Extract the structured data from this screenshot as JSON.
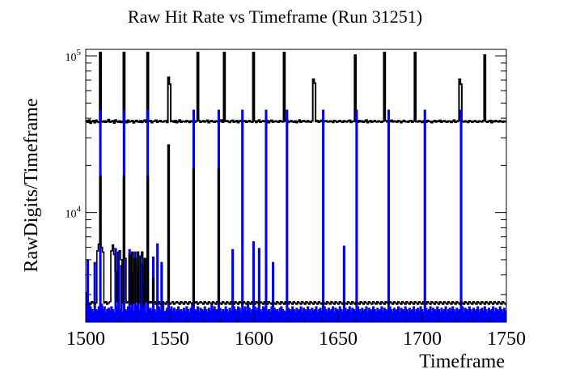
{
  "chart_data": {
    "type": "line",
    "title": "Raw Hit Rate vs Timeframe (Run 31251)",
    "xlabel": "Timeframe",
    "ylabel": "RawDigits/Timeframe",
    "xlim": [
      1500,
      1750
    ],
    "ylim": [
      2000,
      110000
    ],
    "yscale": "log",
    "xticks": [
      1500,
      1550,
      1600,
      1650,
      1700,
      1750
    ],
    "yticks": [
      {
        "value": 10000,
        "base": "10",
        "exp": "4"
      },
      {
        "value": 100000,
        "base": "10",
        "exp": "5"
      }
    ],
    "grid": false,
    "series": [
      {
        "color": "#000000",
        "style": "outline-step",
        "values": [
          38500,
          37800,
          39000,
          37200,
          38100,
          38600,
          37500,
          38800,
          38000,
          37600,
          105000,
          38200,
          37900,
          38400,
          37700,
          38300,
          39200,
          37800,
          38100,
          38500,
          37300,
          38900,
          38200,
          37800,
          38400,
          37600,
          38100,
          105000,
          38300,
          37500,
          38800,
          37900,
          38200,
          38600,
          37400,
          38100,
          38700,
          38000,
          37800,
          38500,
          37600,
          38300,
          38900,
          37700,
          105000,
          38200,
          38600,
          37500,
          38100,
          38400,
          38800,
          37700,
          38200,
          38600,
          38000,
          37900,
          38300,
          38500,
          37600,
          73000,
          66000,
          38100,
          38400,
          37800,
          38600,
          37500,
          38200,
          38900,
          37700,
          38300,
          38100,
          37900,
          38600,
          38200,
          37600,
          38400,
          38000,
          38700,
          37800,
          38300,
          105000,
          38600,
          37700,
          38100,
          38500,
          37900,
          38300,
          38800,
          37500,
          38200,
          38600,
          38000,
          37800,
          38400,
          38100,
          37600,
          38300,
          38900,
          37700,
          105000,
          38200,
          38500,
          38000,
          37600,
          38400,
          38800,
          37800,
          38100,
          38600,
          37500,
          38300,
          38700,
          37900,
          38200,
          38500,
          37700,
          38100,
          38600,
          38000,
          37800,
          105000,
          38400,
          37600,
          38300,
          38900,
          37700,
          38200,
          38500,
          38100,
          37900,
          38600,
          37500,
          38300,
          38800,
          37800,
          38100,
          38400,
          38000,
          37700,
          38600,
          38200,
          37900,
          105000,
          38300,
          38700,
          37600,
          38100,
          38500,
          38000,
          37800,
          38400,
          37500,
          38200,
          38900,
          37700,
          38300,
          38600,
          38100,
          37900,
          38500,
          38000,
          37800,
          38400,
          71000,
          67000,
          38100,
          38600,
          37700,
          38300,
          38800,
          37500,
          38200,
          38500,
          38000,
          37900,
          38400,
          38100,
          37600,
          38700,
          38300,
          37800,
          38200,
          38600,
          38000,
          37700,
          38500,
          38100,
          37900,
          38400,
          38800,
          37600,
          38300,
          38100,
          101000,
          38200,
          37800,
          38600,
          38000,
          38400,
          37700,
          38300,
          38900,
          37500,
          38100,
          38500,
          37800,
          38200,
          38600,
          38000,
          37900,
          38400,
          38100,
          37700,
          38300,
          105000,
          38500,
          38000,
          37600,
          38200,
          38800,
          37900,
          38400,
          38100,
          37800,
          38600,
          38300,
          37500,
          38200,
          38700,
          38000,
          38100,
          37800,
          38400,
          38600,
          37700,
          38300,
          105000,
          38000,
          37900,
          38500,
          38200,
          37600,
          38400,
          38100,
          37800,
          38700,
          38300,
          38000,
          37500,
          38200,
          38600,
          37900,
          38400,
          38100,
          38800,
          37700,
          38300,
          38500,
          38000,
          37800,
          38400,
          38200,
          37600,
          38300,
          38900,
          37700,
          38100,
          38500,
          71000,
          66000,
          38200,
          37900,
          38400,
          38000,
          37600,
          38600,
          38300,
          37800,
          38100,
          38500,
          38000,
          37700,
          38400,
          38200,
          37900,
          38600,
          101000,
          38100,
          37800,
          38300,
          38700,
          37500,
          38400,
          38000,
          38600,
          38200,
          37900,
          38500,
          38100,
          37800,
          38300,
          38000
        ]
      },
      {
        "color": "#0000ff",
        "style": "filled-step",
        "values": [
          3100,
          5000,
          2600,
          2500,
          2400,
          2300,
          4800,
          2400,
          2350,
          2500,
          45000,
          2600,
          2400,
          2500,
          2300,
          2400,
          2450,
          2350,
          2500,
          2400,
          2300,
          5900,
          2500,
          5500,
          2400,
          4600,
          2300,
          45000,
          2400,
          2350,
          2500,
          5800,
          2450,
          4100,
          2350,
          5600,
          2550,
          4200,
          2400,
          5300,
          4700,
          2600,
          5000,
          2300,
          45000,
          2400,
          2450,
          2350,
          5200,
          2400,
          2300,
          6300,
          2500,
          2400,
          4800,
          2600,
          2300,
          2350,
          2450,
          27000,
          2400,
          2500,
          2350,
          2450,
          2300,
          2400,
          2500,
          2350,
          2400,
          2300,
          2450,
          2350,
          2500,
          2400,
          2300,
          2450,
          2550,
          45000,
          2400,
          2350,
          2500,
          2300,
          2450,
          2400,
          2350,
          2500,
          2400,
          2300,
          2450,
          2350,
          2600,
          2400,
          2500,
          2350,
          2400,
          45000,
          2450,
          2300,
          2400,
          2350,
          2500,
          2400,
          2300,
          2450,
          2350,
          5800,
          2500,
          2400,
          2350,
          2500,
          2450,
          2300,
          45000,
          2400,
          2500,
          2350,
          2600,
          2450,
          2300,
          2400,
          6500,
          2500,
          2350,
          2450,
          5900,
          2400,
          2300,
          2500,
          2450,
          45000,
          2350,
          2400,
          2300,
          2500,
          4800,
          2450,
          2350,
          2400,
          2300,
          2450,
          2500,
          2400,
          2350,
          2300,
          45000,
          2450,
          2400,
          2350,
          2500,
          2400,
          2300,
          2450,
          2350,
          2400,
          2500,
          2300,
          2450,
          2400,
          2350,
          2500,
          2400,
          2300,
          2450,
          2350,
          2400,
          2500,
          2300,
          2400,
          2450,
          2350,
          45000,
          2500,
          2400,
          2300,
          2450,
          2350,
          2400,
          2500,
          2300,
          2450,
          2400,
          2350,
          2500,
          2400,
          2300,
          6100,
          2450,
          2350,
          2400,
          2500,
          2300,
          2450,
          2400,
          2350,
          45000,
          2500,
          2400,
          2300,
          2450,
          2350,
          2400,
          2500,
          2300,
          2450,
          2400,
          2350,
          2500,
          2400,
          2300,
          2450,
          2350,
          2400,
          2500,
          2300,
          2450,
          2400,
          2350,
          45000,
          2500,
          2400,
          2300,
          2450,
          2350,
          2400,
          2500,
          2300,
          2450,
          2400,
          2350,
          2500,
          2400,
          2300,
          2450,
          2350,
          2400,
          2500,
          2300,
          2400,
          2450,
          2350,
          2500,
          2400,
          2300,
          45000,
          2450,
          2350,
          2400,
          2500,
          2300,
          2450,
          2400,
          2350,
          2500,
          2400,
          2300,
          2450,
          2350,
          2400,
          2500,
          2300,
          2400,
          2450,
          2350,
          2500,
          2400,
          2300,
          2450,
          2350,
          2400,
          45000,
          2500,
          2300,
          2450,
          2400,
          2350,
          2500,
          2400,
          2300,
          2450,
          2350,
          2400,
          2500,
          2300,
          2400,
          2450,
          2350,
          2500,
          2400,
          2300,
          2450,
          2350,
          2400,
          2500,
          2300,
          2450,
          2400,
          2350,
          2500,
          2400,
          2300,
          2450,
          2350
        ]
      },
      {
        "color": "#000000",
        "style": "outline-step-low",
        "values": [
          2600,
          2600,
          2650,
          2600,
          2700,
          2650,
          2600,
          2650,
          5700,
          6300,
          17000,
          6000,
          5600,
          2650,
          2700,
          2600,
          2650,
          2700,
          5700,
          6200,
          5400,
          4200,
          2700,
          5600,
          5700,
          5000,
          2650,
          17000,
          5100,
          2650,
          2700,
          5400,
          2600,
          5600,
          2650,
          5100,
          2700,
          5600,
          2650,
          5200,
          5600,
          2600,
          5100,
          2700,
          17000,
          2650,
          2700,
          2650,
          3800,
          2700,
          2600,
          2650,
          2700,
          2600,
          2650,
          2700,
          2650,
          2600,
          2700,
          27000,
          2600,
          2650,
          2700,
          2600,
          2650,
          2700,
          2650,
          2600,
          2700,
          2650,
          2600,
          2700,
          2650,
          2600,
          2700,
          2650,
          2600,
          19000,
          2650,
          2700,
          2600,
          2650,
          2700,
          2650,
          2600,
          2700,
          2650,
          2600,
          2700,
          2650,
          2600,
          2700,
          2650,
          2600,
          2700,
          19000,
          2650,
          2600,
          2700,
          2650,
          2600,
          2700,
          2650,
          2600,
          2700,
          2650,
          2600,
          2700,
          2650,
          2600,
          2700,
          2650,
          2600,
          2700,
          2650,
          2600,
          2700,
          2650,
          2600,
          2700,
          2650,
          2600,
          2700,
          2650,
          2600,
          2700,
          2650,
          2600,
          2700,
          2650,
          2600,
          2700,
          2650,
          2600,
          2700,
          2650,
          2600,
          2700,
          2650,
          2600,
          2700,
          2650,
          2600,
          2700,
          2650,
          2600,
          2700,
          2650,
          2600,
          2700,
          2650,
          2600,
          2700,
          2650,
          2600,
          2700,
          2650,
          2600,
          2700,
          2650,
          2600,
          2700,
          2650,
          2600,
          2700,
          2650,
          2600,
          2700,
          2650,
          2600,
          2700,
          2650,
          2600,
          2700,
          2650,
          2600,
          2700,
          2650,
          2600,
          2700,
          2650,
          2600,
          2700,
          2650,
          2600,
          2700,
          2650,
          2600,
          2700,
          2650,
          2600,
          2700,
          2650,
          2600,
          2700,
          2650,
          2600,
          2700,
          2650,
          2600,
          2700,
          2650,
          2600,
          2700,
          2650,
          2600,
          2700,
          2650,
          2600,
          2700,
          2650,
          2600,
          2700,
          2650,
          2600,
          2700,
          2650,
          2600,
          2700,
          2650,
          2600,
          2700,
          2650,
          2600,
          2700,
          2650,
          2600,
          2700,
          2650,
          2600,
          2700,
          2650,
          2600,
          2700,
          2650,
          2600,
          2700,
          2650,
          2600,
          2700,
          2650,
          2600,
          2700,
          2650,
          2600,
          2700,
          2650,
          2600,
          2700,
          2650,
          2600,
          2700,
          2650,
          2600,
          2700,
          2650,
          2600,
          2700,
          2650,
          2600,
          2700,
          2650,
          2600,
          2700,
          2650,
          2600,
          2700,
          2650,
          2600,
          2700,
          2650,
          2600,
          2700,
          2650,
          2600,
          2700,
          2650,
          2600,
          2700,
          2650,
          2600,
          2700,
          2650,
          2600,
          2700,
          2650,
          2600,
          2700,
          2650,
          2600,
          2700,
          2650,
          2600,
          2700,
          2650,
          2600,
          2700,
          2650,
          2600,
          2700,
          2650,
          2600
        ]
      }
    ]
  }
}
